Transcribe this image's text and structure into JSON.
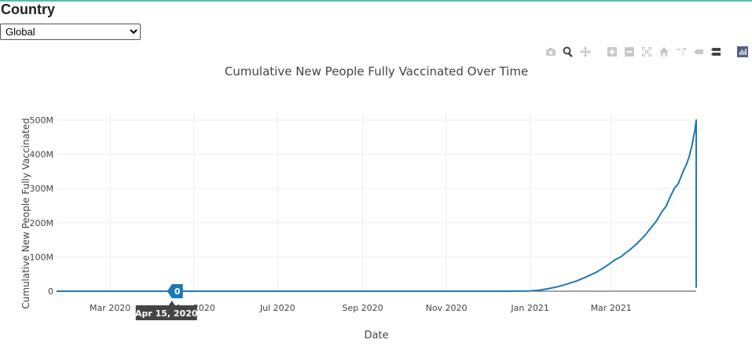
{
  "page": {
    "heading": "Country",
    "country_select": {
      "selected": "Global",
      "options": [
        "Global"
      ]
    }
  },
  "modebar": {
    "buttons": [
      {
        "name": "camera-icon"
      },
      {
        "name": "zoom-icon"
      },
      {
        "name": "pan-icon"
      },
      {
        "name": "zoom-in-icon"
      },
      {
        "name": "zoom-out-icon"
      },
      {
        "name": "autoscale-icon"
      },
      {
        "name": "reset-axes-icon"
      },
      {
        "name": "spike-lines-icon"
      },
      {
        "name": "hover-closest-icon"
      },
      {
        "name": "hover-compare-icon"
      },
      {
        "name": "plotly-logo-icon"
      }
    ]
  },
  "chart_data": {
    "type": "line",
    "title": "Cumulative New People Fully Vaccinated Over Time",
    "xlabel": "Date",
    "ylabel": "Cumulative New People Fully Vaccinated",
    "xlim": [
      "2020-01-22",
      "2021-05-02"
    ],
    "ylim": [
      0,
      500000000
    ],
    "x_ticks": [
      {
        "date": "2020-03-01",
        "label": "Mar 2020"
      },
      {
        "date": "2020-05-01",
        "label": "May 2020"
      },
      {
        "date": "2020-07-01",
        "label": "Jul 2020"
      },
      {
        "date": "2020-09-01",
        "label": "Sep 2020"
      },
      {
        "date": "2020-11-01",
        "label": "Nov 2020"
      },
      {
        "date": "2021-01-01",
        "label": "Jan 2021"
      },
      {
        "date": "2021-03-01",
        "label": "Mar 2021"
      }
    ],
    "y_ticks": [
      {
        "value": 0,
        "label": "0"
      },
      {
        "value": 100000000,
        "label": "100M"
      },
      {
        "value": 200000000,
        "label": "200M"
      },
      {
        "value": 300000000,
        "label": "300M"
      },
      {
        "value": 400000000,
        "label": "400M"
      },
      {
        "value": 500000000,
        "label": "500M"
      }
    ],
    "grid": true,
    "series": [
      {
        "color": "#1f77b4",
        "points": [
          [
            "2020-01-22",
            0
          ],
          [
            "2020-12-15",
            0
          ],
          [
            "2020-12-31",
            500000
          ],
          [
            "2021-01-07",
            2500000
          ],
          [
            "2021-01-14",
            7000000
          ],
          [
            "2021-01-21",
            13000000
          ],
          [
            "2021-01-28",
            21000000
          ],
          [
            "2021-02-04",
            30000000
          ],
          [
            "2021-02-11",
            42000000
          ],
          [
            "2021-02-18",
            55000000
          ],
          [
            "2021-02-25",
            72000000
          ],
          [
            "2021-03-04",
            92000000
          ],
          [
            "2021-03-08",
            100000000
          ],
          [
            "2021-03-11",
            110000000
          ],
          [
            "2021-03-15",
            122000000
          ],
          [
            "2021-03-20",
            140000000
          ],
          [
            "2021-03-25",
            160000000
          ],
          [
            "2021-03-30",
            185000000
          ],
          [
            "2021-04-03",
            205000000
          ],
          [
            "2021-04-07",
            232000000
          ],
          [
            "2021-04-10",
            248000000
          ],
          [
            "2021-04-13",
            275000000
          ],
          [
            "2021-04-16",
            300000000
          ],
          [
            "2021-04-19",
            315000000
          ],
          [
            "2021-04-22",
            345000000
          ],
          [
            "2021-04-25",
            372000000
          ],
          [
            "2021-04-27",
            395000000
          ],
          [
            "2021-04-28",
            412000000
          ],
          [
            "2021-04-29",
            428000000
          ],
          [
            "2021-04-30",
            450000000
          ],
          [
            "2021-05-01",
            470000000
          ],
          [
            "2021-05-02",
            500000000
          ],
          [
            "2021-05-02",
            340000000
          ],
          [
            "2021-05-02",
            10000000
          ]
        ]
      }
    ],
    "hover": {
      "x": "2020-04-15",
      "x_label": "Apr 15, 2020",
      "y_label": "0"
    }
  }
}
